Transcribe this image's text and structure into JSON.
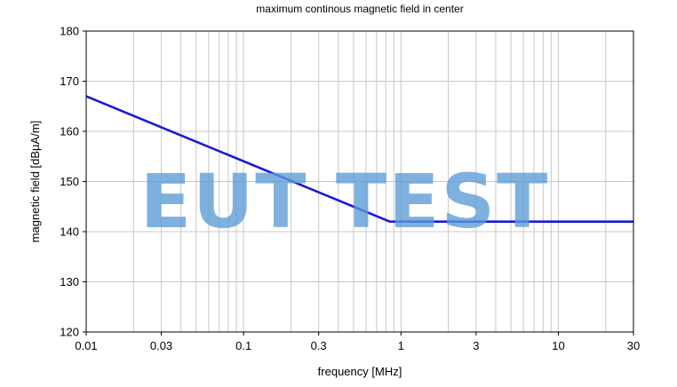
{
  "chart_data": {
    "type": "line",
    "title": "maximum continous magnetic field in center",
    "xlabel": "frequency [MHz]",
    "ylabel": "magnetic field [dBµA/m]",
    "x_scale": "log",
    "xlim": [
      0.01,
      30
    ],
    "ylim": [
      120,
      180
    ],
    "x_ticks": [
      0.01,
      0.03,
      0.1,
      0.3,
      1,
      3,
      10,
      30
    ],
    "x_tick_labels": [
      "0.01",
      "0.03",
      "0.1",
      "0.3",
      "1",
      "3",
      "10",
      "30"
    ],
    "y_ticks": [
      120,
      130,
      140,
      150,
      160,
      170,
      180
    ],
    "y_tick_labels": [
      "120",
      "130",
      "140",
      "150",
      "160",
      "170",
      "180"
    ],
    "grid": true,
    "series": [
      {
        "color": "#1a1ad6",
        "x": [
          0.01,
          0.85,
          30
        ],
        "y": [
          167,
          142,
          142
        ]
      }
    ]
  },
  "watermark": {
    "text": "EUT TEST",
    "color": "#5b9bd5"
  },
  "colors": {
    "grid": "#c8c8c8",
    "frame": "#000000",
    "line": "#1a1ad6"
  }
}
